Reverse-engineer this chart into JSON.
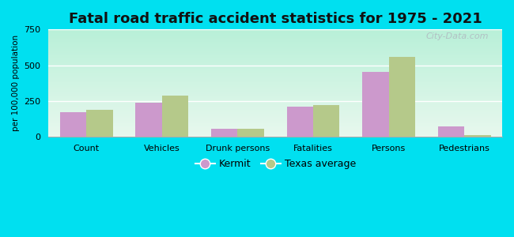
{
  "title": "Fatal road traffic accident statistics for 1975 - 2021",
  "ylabel": "per 100,000 population",
  "categories": [
    "Count",
    "Vehicles",
    "Drunk persons",
    "Fatalities",
    "Persons",
    "Pedestrians"
  ],
  "kermit_values": [
    175,
    240,
    55,
    210,
    455,
    75
  ],
  "texas_values": [
    190,
    290,
    60,
    225,
    560,
    15
  ],
  "kermit_color": "#cc99cc",
  "texas_color": "#b5c98a",
  "ylim": [
    0,
    750
  ],
  "yticks": [
    0,
    250,
    500,
    750
  ],
  "bg_color_topleft": "#b8f0d8",
  "bg_color_bottomright": "#e8f8ee",
  "outer_bg": "#00e0f0",
  "bar_width": 0.35,
  "title_fontsize": 13,
  "legend_labels": [
    "Kermit",
    "Texas average"
  ],
  "watermark": "City-Data.com"
}
